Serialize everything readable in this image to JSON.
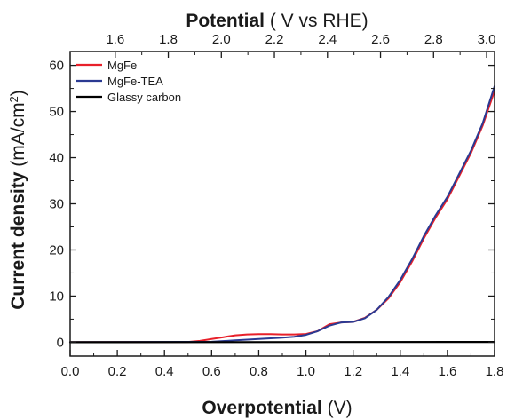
{
  "chart_data": {
    "type": "line",
    "x_bottom": {
      "title_bold": "Overpotential",
      "title_normal": " (V)",
      "range": [
        0.0,
        1.8
      ],
      "ticks": [
        0.0,
        0.2,
        0.4,
        0.6,
        0.8,
        1.0,
        1.2,
        1.4,
        1.6,
        1.8
      ],
      "tick_labels": [
        "0.0",
        "0.2",
        "0.4",
        "0.6",
        "0.8",
        "1.0",
        "1.2",
        "1.4",
        "1.6",
        "1.8"
      ]
    },
    "x_top": {
      "title_bold": "Potential",
      "title_normal": " ( V vs RHE)",
      "range": [
        1.43,
        3.03
      ],
      "ticks": [
        1.6,
        1.8,
        2.0,
        2.2,
        2.4,
        2.6,
        2.8,
        3.0
      ],
      "tick_labels": [
        "1.6",
        "1.8",
        "2.0",
        "2.2",
        "2.4",
        "2.6",
        "2.8",
        "3.0"
      ]
    },
    "y": {
      "title_bold": "Current density",
      "title_normal": " (mA/cm",
      "title_sup": "2",
      "title_close": ")",
      "range": [
        -3,
        63
      ],
      "ticks": [
        0,
        10,
        20,
        30,
        40,
        50,
        60
      ],
      "tick_labels": [
        "0",
        "10",
        "20",
        "30",
        "40",
        "50",
        "60"
      ]
    },
    "legend_position": "top-left",
    "series": [
      {
        "name": "MgFe",
        "color": "#e8202a",
        "x": [
          0.0,
          0.5,
          0.55,
          0.6,
          0.65,
          0.7,
          0.75,
          0.8,
          0.85,
          0.9,
          0.95,
          1.0,
          1.05,
          1.1,
          1.15,
          1.2,
          1.25,
          1.3,
          1.35,
          1.4,
          1.45,
          1.5,
          1.55,
          1.6,
          1.65,
          1.7,
          1.75,
          1.8
        ],
        "y": [
          0.0,
          0.05,
          0.3,
          0.7,
          1.1,
          1.5,
          1.7,
          1.75,
          1.75,
          1.7,
          1.7,
          1.8,
          2.4,
          3.9,
          4.3,
          4.4,
          5.3,
          7.0,
          9.5,
          13.0,
          17.5,
          22.5,
          27.0,
          31.0,
          36.0,
          41.0,
          47.0,
          54.5
        ]
      },
      {
        "name": "MgFe-TEA",
        "color": "#2a3a92",
        "x": [
          0.0,
          0.6,
          0.7,
          0.8,
          0.9,
          0.95,
          1.0,
          1.05,
          1.1,
          1.15,
          1.2,
          1.25,
          1.3,
          1.35,
          1.4,
          1.45,
          1.5,
          1.55,
          1.6,
          1.65,
          1.7,
          1.75,
          1.8
        ],
        "y": [
          0.0,
          0.1,
          0.4,
          0.7,
          1.0,
          1.2,
          1.6,
          2.4,
          3.6,
          4.3,
          4.4,
          5.2,
          7.0,
          9.8,
          13.5,
          18.0,
          23.0,
          27.5,
          31.5,
          36.5,
          41.5,
          47.5,
          55.5
        ]
      },
      {
        "name": "Glassy carbon",
        "color": "#000000",
        "x": [
          0.0,
          1.8
        ],
        "y": [
          0.0,
          0.05
        ]
      }
    ]
  }
}
